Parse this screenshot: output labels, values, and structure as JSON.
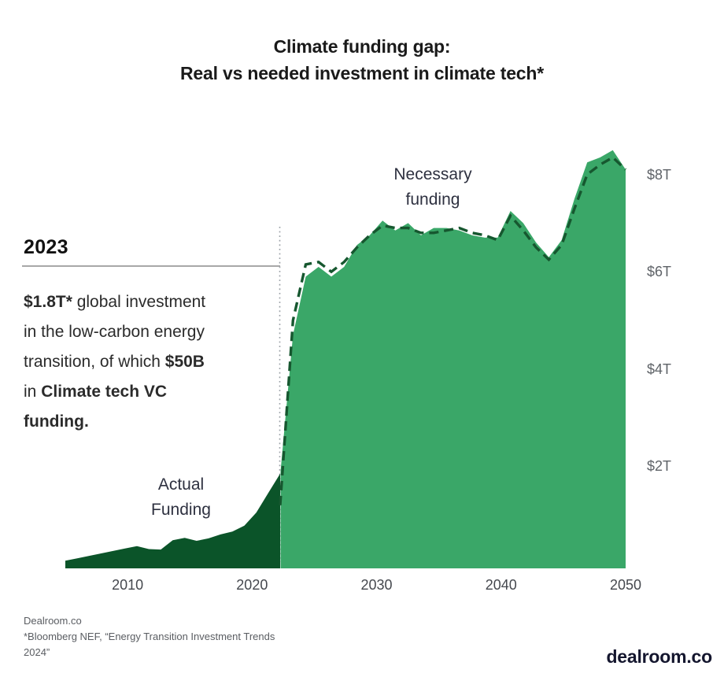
{
  "title": {
    "line1": "Climate funding gap:",
    "line2": "Real vs needed investment in climate tech*"
  },
  "labels": {
    "necessary_line1": "Necessary",
    "necessary_line2": "funding",
    "actual_line1": "Actual",
    "actual_line2": "Funding"
  },
  "annotation": {
    "year_heading": "2023",
    "paragraph_lines": [
      [
        {
          "t": "$1.8T*",
          "b": true
        },
        {
          "t": " global investment",
          "b": false
        }
      ],
      [
        {
          "t": "in the low-carbon energy",
          "b": false
        }
      ],
      [
        {
          "t": "transition, of which ",
          "b": false
        },
        {
          "t": "$50B",
          "b": true
        }
      ],
      [
        {
          "t": "in ",
          "b": false
        },
        {
          "t": "Climate tech VC",
          "b": true
        }
      ],
      [
        {
          "t": "funding.",
          "b": true
        }
      ]
    ]
  },
  "chart_data": {
    "type": "area",
    "title": "Climate funding gap: Real vs needed investment in climate tech*",
    "unit": "USD trillions",
    "xlabel": "",
    "ylabel": "",
    "xlim": [
      2005,
      2050
    ],
    "ylim": [
      0,
      8.8
    ],
    "grid": false,
    "legend": "inline-annotations",
    "split_year": 2023,
    "x_ticks": [
      2010,
      2020,
      2030,
      2040,
      2050
    ],
    "y_ticks": [
      {
        "value": 2,
        "label": "$2T"
      },
      {
        "value": 4,
        "label": "$4T"
      },
      {
        "value": 6,
        "label": "$6T"
      },
      {
        "value": 8,
        "label": "$8T"
      }
    ],
    "series": [
      {
        "name": "Actual funding",
        "style": "area",
        "color": "#0b5429",
        "start_year": 2005,
        "values": [
          0.06,
          0.11,
          0.16,
          0.21,
          0.26,
          0.31,
          0.36,
          0.3,
          0.29,
          0.48,
          0.53,
          0.47,
          0.52,
          0.6,
          0.66,
          0.78,
          1.05,
          1.45,
          1.85
        ]
      },
      {
        "name": "Necessary funding",
        "style": "area",
        "color": "#3aa768",
        "start_year": 2023,
        "values": [
          1.9,
          4.7,
          5.9,
          6.1,
          5.9,
          6.1,
          6.55,
          6.75,
          7.05,
          6.85,
          7.0,
          6.75,
          6.9,
          6.9,
          6.85,
          6.75,
          6.7,
          6.7,
          7.25,
          7.0,
          6.6,
          6.3,
          6.65,
          7.5,
          8.25,
          8.35,
          8.5,
          8.1
        ]
      },
      {
        "name": "Necessary funding (dashed outline)",
        "style": "dashed-line",
        "color": "#16572f",
        "start_year": 2023,
        "values": [
          1.2,
          5.0,
          6.15,
          6.2,
          6.0,
          6.2,
          6.5,
          6.75,
          6.95,
          6.9,
          6.9,
          6.8,
          6.8,
          6.85,
          6.9,
          6.8,
          6.75,
          6.65,
          7.15,
          6.85,
          6.5,
          6.25,
          6.55,
          7.3,
          8.0,
          8.2,
          8.35,
          8.1
        ]
      }
    ],
    "annotation_marker_color": "#9aa0a6",
    "heading_rule_color": "#a8a8a8"
  },
  "footer": {
    "line1": "Dealroom.co",
    "line2": "*Bloomberg NEF, “Energy Transition Investment Trends",
    "line3": "2024”"
  },
  "logo": {
    "text": "dealroom.co"
  }
}
